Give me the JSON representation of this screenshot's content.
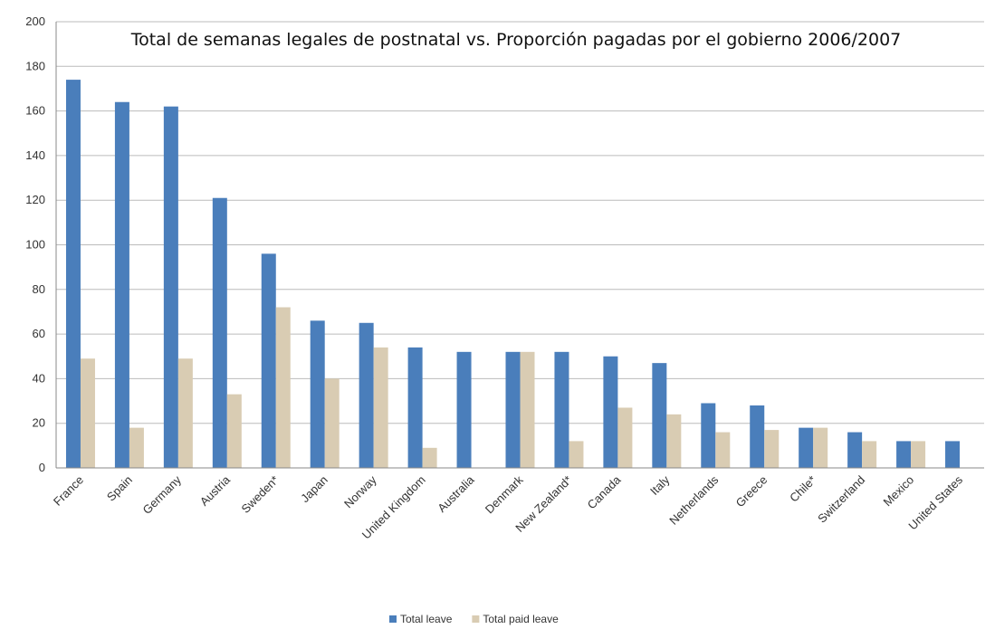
{
  "chart_data": {
    "type": "bar",
    "title": "Total de semanas legales  de postnatal vs. Proporción pagadas por el gobierno 2006/2007",
    "categories": [
      "France",
      "Spain",
      "Germany",
      "Austria",
      "Sweden*",
      "Japan",
      "Norway",
      "United Kingdom",
      "Australia",
      "Denmark",
      "New Zealand*",
      "Canada",
      "Italy",
      "Netherlands",
      "Greece",
      "Chile*",
      "Switzerland",
      "Mexico",
      "United States"
    ],
    "series": [
      {
        "name": "Total leave",
        "color": "#4a7ebb",
        "values": [
          174,
          164,
          162,
          121,
          96,
          66,
          65,
          54,
          52,
          52,
          52,
          50,
          47,
          29,
          28,
          18,
          16,
          12,
          12
        ]
      },
      {
        "name": "Total paid leave",
        "color": "#d9ccb3",
        "values": [
          49,
          18,
          49,
          33,
          72,
          40,
          54,
          9,
          0,
          52,
          12,
          27,
          24,
          16,
          17,
          18,
          12,
          12,
          0
        ]
      }
    ],
    "ylim": [
      0,
      200
    ],
    "yticks": [
      0,
      20,
      40,
      60,
      80,
      100,
      120,
      140,
      160,
      180,
      200
    ],
    "grid": true,
    "legend": "bottom"
  }
}
